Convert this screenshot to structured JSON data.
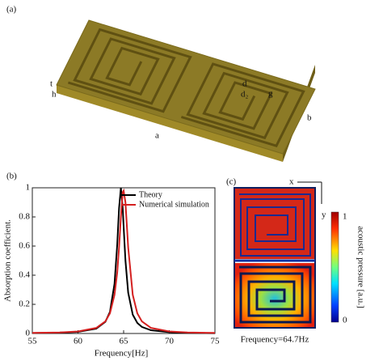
{
  "panel_a": {
    "label": "(a)",
    "dims": {
      "t": "t",
      "h": "h",
      "d": "d",
      "d2": "d₂",
      "g": "g",
      "a": "a",
      "b": "b"
    }
  },
  "chart_data": {
    "type": "line",
    "panel_label": "(b)",
    "xlabel": "Frequency[Hz]",
    "ylabel": "Absorption coefficient.",
    "x": [
      55,
      58,
      60,
      62,
      63,
      63.5,
      64,
      64.3,
      64.5,
      64.7,
      64.9,
      65,
      65.2,
      65.5,
      66,
      66.5,
      67,
      68,
      70,
      72,
      75
    ],
    "series": [
      {
        "name": "Theory",
        "color": "#000000",
        "values": [
          0.003,
          0.006,
          0.011,
          0.033,
          0.08,
          0.148,
          0.34,
          0.61,
          0.86,
          1,
          0.86,
          0.735,
          0.5,
          0.28,
          0.129,
          0.072,
          0.045,
          0.022,
          0.009,
          0.005,
          0.002
        ]
      },
      {
        "name": "Numerical simulation",
        "color": "#d42020",
        "values": [
          0.004,
          0.007,
          0.014,
          0.038,
          0.083,
          0.138,
          0.265,
          0.42,
          0.59,
          0.8,
          0.97,
          0.98,
          0.9,
          0.59,
          0.265,
          0.138,
          0.083,
          0.038,
          0.014,
          0.007,
          0.004
        ]
      }
    ],
    "xlim": [
      55,
      75
    ],
    "xticks": [
      55,
      60,
      65,
      70,
      75
    ],
    "ylim": [
      0,
      1
    ],
    "yticks": [
      0,
      0.2,
      0.4,
      0.6,
      0.8,
      1
    ],
    "legend": "upper-right"
  },
  "panel_c": {
    "label": "(c)",
    "axis_x": "x",
    "axis_y": "y",
    "colorbar_label": "acoustic pressure [a.u.]",
    "colorbar_ticks": [
      1,
      0
    ],
    "caption": "Frequency=64.7Hz"
  }
}
